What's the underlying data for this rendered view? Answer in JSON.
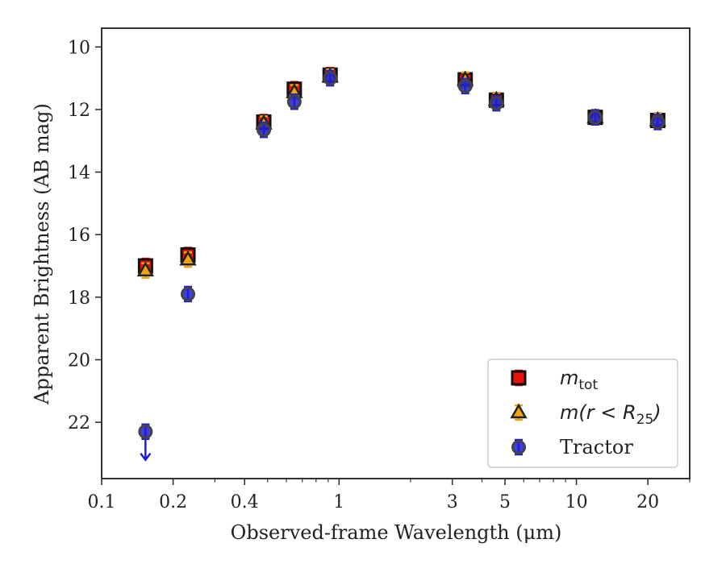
{
  "chart_data": {
    "type": "scatter",
    "xlabel": "Observed-frame Wavelength (μm)",
    "ylabel": "Apparent Brightness (AB mag)",
    "xscale": "log",
    "xlim": [
      0.1,
      30
    ],
    "ylim": [
      23.8,
      9.4
    ],
    "y_inverted": true,
    "x_ticks": [
      0.1,
      0.2,
      0.4,
      1,
      3,
      5,
      10,
      20
    ],
    "x_tick_labels": [
      "0.1",
      "0.2",
      "0.4",
      "1",
      "3",
      "5",
      "10",
      "20"
    ],
    "y_ticks": [
      10,
      12,
      14,
      16,
      18,
      20,
      22
    ],
    "y_tick_labels": [
      "10",
      "12",
      "14",
      "16",
      "18",
      "20",
      "22"
    ],
    "grid": false,
    "legend_position": "lower-right",
    "series": [
      {
        "name": "m_tot",
        "marker": "square",
        "color": "#e8120c",
        "x": [
          0.153,
          0.231,
          0.482,
          0.648,
          0.917,
          3.4,
          4.6,
          12.0,
          22.0
        ],
        "y": [
          17.0,
          16.65,
          12.4,
          11.35,
          10.9,
          11.05,
          11.7,
          12.25,
          12.35
        ]
      },
      {
        "name": "m(r < R25)",
        "marker": "triangle",
        "color": "#f0a30a",
        "x": [
          0.153,
          0.231,
          0.482,
          0.648,
          0.917,
          3.4,
          4.6,
          12.0,
          22.0
        ],
        "y": [
          17.15,
          16.8,
          12.45,
          11.45,
          10.95,
          11.05,
          11.7,
          12.25,
          12.35
        ]
      },
      {
        "name": "Tractor",
        "marker": "circle",
        "color": "#1e1ed6",
        "x": [
          0.153,
          0.231,
          0.482,
          0.648,
          0.917,
          3.4,
          4.6,
          12.0,
          22.0
        ],
        "y": [
          22.3,
          17.9,
          12.65,
          11.75,
          11.0,
          11.25,
          11.8,
          12.25,
          12.4
        ],
        "upper_limit": [
          true,
          false,
          false,
          false,
          false,
          false,
          false,
          false,
          false
        ]
      }
    ],
    "legend": {
      "entries": [
        {
          "label_main": "m",
          "label_sub": "tot",
          "marker": "square",
          "color": "#e8120c"
        },
        {
          "label_main": "m(r < R",
          "label_sub": "25",
          "label_tail": ")",
          "marker": "triangle",
          "color": "#f0a30a"
        },
        {
          "label_main": "Tractor",
          "label_sub": "",
          "marker": "circle",
          "color": "#1e1ed6"
        }
      ]
    }
  }
}
